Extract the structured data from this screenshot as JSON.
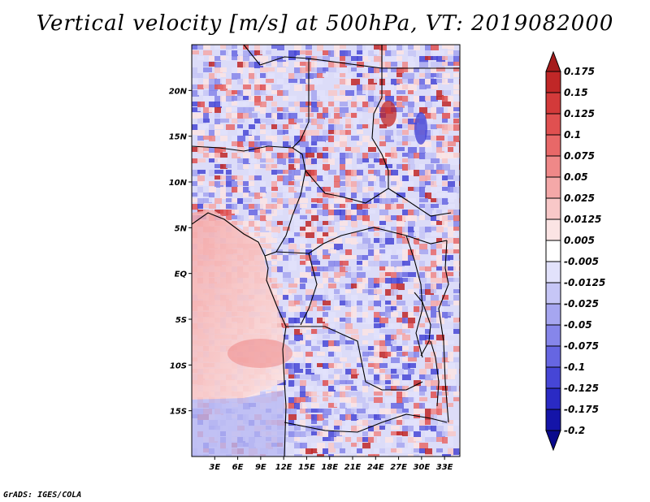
{
  "title": "Vertical velocity [m/s] at 500hPa, VT: 2019082000",
  "credit": "GrADS: IGES/COLA",
  "map": {
    "lat_labels": [
      "20N",
      "15N",
      "10N",
      "5N",
      "EQ",
      "5S",
      "10S",
      "15S"
    ],
    "lon_labels": [
      "3E",
      "6E",
      "9E",
      "12E",
      "15E",
      "18E",
      "21E",
      "24E",
      "27E",
      "30E",
      "33E"
    ]
  },
  "colorbar": {
    "labels": [
      "0.175",
      "0.15",
      "0.125",
      "0.1",
      "0.075",
      "0.05",
      "0.025",
      "0.0125",
      "0.005",
      "-0.005",
      "-0.0125",
      "-0.025",
      "-0.05",
      "-0.075",
      "-0.1",
      "-0.125",
      "-0.175",
      "-0.2"
    ],
    "colors": [
      "#a51c1c",
      "#c02727",
      "#d33a3a",
      "#e05050",
      "#e86868",
      "#ef8888",
      "#f4a8a8",
      "#f8c8c8",
      "#fbe4e4",
      "#ffffff",
      "#e2e2fb",
      "#c6c6f6",
      "#a6a6f0",
      "#8686ea",
      "#6666e2",
      "#4646d6",
      "#2a2ac4",
      "#1414a8",
      "#0a0a8c"
    ]
  },
  "chart_data": {
    "type": "heatmap",
    "title": "Vertical velocity [m/s] at 500hPa, VT: 2019082000",
    "variable": "Vertical velocity",
    "units": "m/s",
    "level": "500hPa",
    "valid_time": "2019082000",
    "lat_range": [
      -20,
      25
    ],
    "lon_range": [
      0,
      35
    ],
    "contour_levels": [
      -0.2,
      -0.175,
      -0.125,
      -0.1,
      -0.075,
      -0.05,
      -0.025,
      -0.0125,
      -0.005,
      0.005,
      0.0125,
      0.025,
      0.05,
      0.075,
      0.1,
      0.125,
      0.15,
      0.175
    ]
  }
}
